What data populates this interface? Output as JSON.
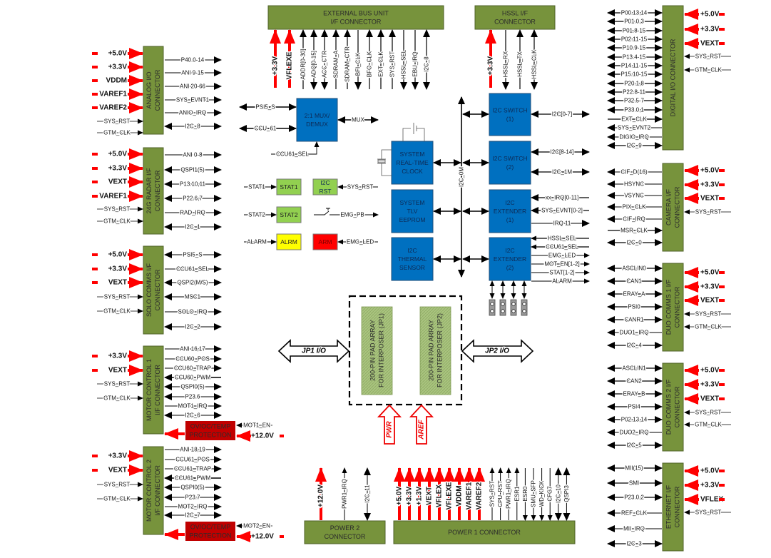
{
  "colors": {
    "connector": "#77933c",
    "block": "#0070c0",
    "power": "#ff0000",
    "protection": "#c00000",
    "status_led": "#92d050",
    "alarm_led": "#ffff00",
    "arm_led": "#ff0000"
  },
  "left_connectors": [
    {
      "id": "analog",
      "title": [
        "ANALOG I/O",
        "CONNECTOR"
      ],
      "power": [
        "+5.0V",
        "+3.3V",
        "VDDM",
        "VAREF1",
        "VAREF2"
      ],
      "inputs": [
        "SYS_RST",
        "GTM_CLK"
      ],
      "signals": [
        {
          "label": "P40.0-14",
          "dir": "out"
        },
        {
          "label": "ANI 9-15",
          "dir": "out"
        },
        {
          "label": "ANI 20-66",
          "dir": "out"
        },
        {
          "label": "SYS_EVNT1",
          "dir": "out"
        },
        {
          "label": "ANIO_IRQ",
          "dir": "out"
        },
        {
          "label": "I2C_8",
          "dir": "bi"
        }
      ]
    },
    {
      "id": "radar",
      "title": [
        "24G RADAR I/F",
        "CONNECTOR"
      ],
      "power": [
        "+5.0V",
        "+3.3V",
        "VEXT",
        "VAREF1"
      ],
      "inputs": [
        "SYS_RST",
        "GTM_CLK"
      ],
      "signals": [
        {
          "label": "ANI 0-8",
          "dir": "out"
        },
        {
          "label": "QSPI1(5)",
          "dir": "bi"
        },
        {
          "label": "P13.10,11",
          "dir": "bi"
        },
        {
          "label": "P22.6,7",
          "dir": "bi"
        },
        {
          "label": "RAD_IRQ",
          "dir": "out"
        },
        {
          "label": "I2C_1",
          "dir": "bi"
        }
      ]
    },
    {
      "id": "solo",
      "title": [
        "SOLO COMMS I/F",
        "CONNECTOR"
      ],
      "power": [
        "+5.0V",
        "+3.3V",
        "VEXT"
      ],
      "inputs": [
        "SYS_RST",
        "GTM_CLK"
      ],
      "signals": [
        {
          "label": "PSI5_S",
          "dir": "bi"
        },
        {
          "label": "CCU61_SEL",
          "dir": "out"
        },
        {
          "label": "QSPI2(M/S)",
          "dir": "bi"
        },
        {
          "label": "MSC1",
          "dir": "bi"
        },
        {
          "label": "SOLO_IRQ",
          "dir": "out"
        },
        {
          "label": "I2C_2",
          "dir": "bi"
        }
      ]
    },
    {
      "id": "motor1",
      "title": [
        "MOTOR CONTROL 1",
        "I/F CONNECTOR"
      ],
      "power": [
        "+3.3V",
        "VEXT"
      ],
      "inputs": [
        "SYS_RST",
        "GTM_CLK"
      ],
      "signals": [
        {
          "label": "ANI 16,17",
          "dir": "out"
        },
        {
          "label": "CCU60_POS",
          "dir": "out"
        },
        {
          "label": "CCU60_TRAP",
          "dir": "out"
        },
        {
          "label": "CCU60_PWM",
          "dir": "in"
        },
        {
          "label": "QSPI0(5)",
          "dir": "bi"
        },
        {
          "label": "P23.6",
          "dir": "bi"
        },
        {
          "label": "MOT1_IRQ",
          "dir": "out"
        },
        {
          "label": "I2C_6",
          "dir": "bi"
        }
      ],
      "protection": {
        "title": [
          "OV/OC/TEMP",
          "PROTECTION"
        ],
        "enable": "MOT1_EN",
        "supply": "+12.0V"
      }
    },
    {
      "id": "motor2",
      "title": [
        "MOTOR CONTROL 2",
        "I/F CONNECTOR"
      ],
      "power": [
        "+3.3V",
        "VEXT"
      ],
      "inputs": [
        "SYS_RST",
        "GTM_CLK"
      ],
      "signals": [
        {
          "label": "ANI 18,19",
          "dir": "out"
        },
        {
          "label": "CCU61_POS",
          "dir": "out"
        },
        {
          "label": "CCU61_TRAP",
          "dir": "out"
        },
        {
          "label": "CCU61_PWM",
          "dir": "in"
        },
        {
          "label": "QSPI0(5)",
          "dir": "bi"
        },
        {
          "label": "P23.7",
          "dir": "bi"
        },
        {
          "label": "MOT2_IRQ",
          "dir": "out"
        },
        {
          "label": "I2C_7",
          "dir": "bi"
        }
      ],
      "protection": {
        "title": [
          "OV/OC/TEMP",
          "PROTECTION"
        ],
        "enable": "MOT2_EN",
        "supply": "+12.0V"
      }
    }
  ],
  "right_connectors": [
    {
      "id": "digital",
      "title": [
        "DIGITAL I/O CONNECTOR"
      ],
      "power": [
        "+5.0V",
        "+3.3V",
        "VEXT"
      ],
      "inputs": [
        "SYS_RST",
        "GTM_CLK"
      ],
      "signals": [
        {
          "label": "P00.13,14",
          "dir": "bi"
        },
        {
          "label": "P01.0,3",
          "dir": "bi"
        },
        {
          "label": "P01.8-15",
          "dir": "bi"
        },
        {
          "label": "P02.11-15",
          "dir": "bi"
        },
        {
          "label": "P10.9-15",
          "dir": "bi"
        },
        {
          "label": "P13.4-15",
          "dir": "bi"
        },
        {
          "label": "P14.11-15",
          "dir": "bi"
        },
        {
          "label": "P15.10-15",
          "dir": "bi"
        },
        {
          "label": "P20.1,8",
          "dir": "bi"
        },
        {
          "label": "P22.8-11",
          "dir": "bi"
        },
        {
          "label": "P32.5-7",
          "dir": "bi"
        },
        {
          "label": "P33.0,1",
          "dir": "bi"
        },
        {
          "label": "EXT_CLK",
          "dir": "in"
        },
        {
          "label": "SYS_EVNT2",
          "dir": "out"
        },
        {
          "label": "DIGIO_IRQ",
          "dir": "out"
        },
        {
          "label": "I2C_9",
          "dir": "bi"
        }
      ]
    },
    {
      "id": "camera",
      "title": [
        "CAMERA I/F",
        "CONNECTOR"
      ],
      "power": [
        "+5.0V",
        "+3.3V",
        "VEXT"
      ],
      "inputs": [
        "SYS_RST"
      ],
      "signals": [
        {
          "label": "CIF_D(16)",
          "dir": "out"
        },
        {
          "label": "HSYNC",
          "dir": "out"
        },
        {
          "label": "VSYNC",
          "dir": "out"
        },
        {
          "label": "PIX_CLK",
          "dir": "out"
        },
        {
          "label": "CIF_IRQ",
          "dir": "out"
        },
        {
          "label": "MSR_CLK",
          "dir": "in"
        },
        {
          "label": "I2C_0",
          "dir": "bi"
        }
      ]
    },
    {
      "id": "duo1",
      "title": [
        "DUO COMMS 1 I/F",
        "CONNECTOR"
      ],
      "power": [
        "+5.0V",
        "+3.3V",
        "VEXT"
      ],
      "inputs": [
        "SYS_RST",
        "GTM_CLK"
      ],
      "signals": [
        {
          "label": "ASCLIN0",
          "dir": "bi"
        },
        {
          "label": "CAN1",
          "dir": "bi"
        },
        {
          "label": "ERAY_A",
          "dir": "bi"
        },
        {
          "label": "PSI0",
          "dir": "bi"
        },
        {
          "label": "CANR1",
          "dir": "bi"
        },
        {
          "label": "DUO1_IRQ",
          "dir": "out"
        },
        {
          "label": "I2C_4",
          "dir": "bi"
        }
      ]
    },
    {
      "id": "duo2",
      "title": [
        "DUO COMMS 2 I/F",
        "CONNECTOR"
      ],
      "power": [
        "+5.0V",
        "+3.3V",
        "VEXT"
      ],
      "inputs": [
        "SYS_RST",
        "GTM_CLK"
      ],
      "signals": [
        {
          "label": "ASCLIN1",
          "dir": "bi"
        },
        {
          "label": "CAN2",
          "dir": "bi"
        },
        {
          "label": "ERAY_B",
          "dir": "bi"
        },
        {
          "label": "PSI4",
          "dir": "bi"
        },
        {
          "label": "P02.13,14",
          "dir": "bi"
        },
        {
          "label": "DUO2_IRQ",
          "dir": "out"
        },
        {
          "label": "I2C_5",
          "dir": "bi"
        }
      ]
    },
    {
      "id": "ethernet",
      "title": [
        "ETHERNET I/F",
        "CONNECTOR"
      ],
      "power": [
        "+5.0V",
        "+3.3V",
        "VFLEX"
      ],
      "inputs": [
        "SYS_RST"
      ],
      "signals": [
        {
          "label": "MII(15)",
          "dir": "bi"
        },
        {
          "label": "SMI",
          "dir": "bi"
        },
        {
          "label": "P23.0,2",
          "dir": "bi"
        },
        {
          "label": "REF_CLK",
          "dir": "out"
        },
        {
          "label": "MII_IRQ",
          "dir": "out"
        },
        {
          "label": "I2C_3",
          "dir": "bi"
        }
      ]
    }
  ],
  "top_connectors": [
    {
      "id": "ebu",
      "title": [
        "EXTERNAL BUS UNIT",
        "I/F CONNECTOR"
      ],
      "pins": [
        {
          "label": "+3.3V",
          "dir": "power"
        },
        {
          "label": "VFLEXE",
          "dir": "power"
        },
        {
          "label": "ADDR[0-30]",
          "dir": "up"
        },
        {
          "label": "ADQ[0-15]",
          "dir": "bi"
        },
        {
          "label": "ACC_CTR",
          "dir": "bi"
        },
        {
          "label": "SDRAM_A",
          "dir": "up"
        },
        {
          "label": "SDRAM_CTR",
          "dir": "up"
        },
        {
          "label": "BFI_CLK",
          "dir": "down"
        },
        {
          "label": "BFO_CLK",
          "dir": "up"
        },
        {
          "label": "EXT_CLK",
          "dir": "up"
        },
        {
          "label": "SYS_RST",
          "dir": "up"
        },
        {
          "label": "HSSL_SEL",
          "dir": "down"
        },
        {
          "label": "EBU_IRQ",
          "dir": "down"
        },
        {
          "label": "I2C_8",
          "dir": "bi"
        }
      ]
    },
    {
      "id": "hssl",
      "title": [
        "HSSL I/F",
        "CONNECTOR"
      ],
      "pins": [
        {
          "label": "+3.3V",
          "dir": "power"
        },
        {
          "label": "HSSL_RX",
          "dir": "down"
        },
        {
          "label": "HSSL_TX",
          "dir": "up"
        },
        {
          "label": "HSSL_CLK",
          "dir": "bi"
        }
      ]
    }
  ],
  "bottom_connectors": [
    {
      "id": "power2",
      "title": [
        "POWER 2",
        "CONNECTOR"
      ],
      "pins": [
        {
          "label": "+12.0V",
          "dir": "power"
        },
        {
          "label": "PWR1_IRQ",
          "dir": "up"
        },
        {
          "label": "I2C_11",
          "dir": "bi"
        }
      ]
    },
    {
      "id": "power1",
      "title": [
        "POWER 1 CONNECTOR"
      ],
      "pins": [
        {
          "label": "+5.0V",
          "dir": "power"
        },
        {
          "label": "+3.3V",
          "dir": "power"
        },
        {
          "label": "+1.3V",
          "dir": "power"
        },
        {
          "label": "VEXT",
          "dir": "power"
        },
        {
          "label": "VFLEX",
          "dir": "power"
        },
        {
          "label": "VFLEXE",
          "dir": "power"
        },
        {
          "label": "VDDM",
          "dir": "power"
        },
        {
          "label": "VAREF1",
          "dir": "power"
        },
        {
          "label": "VAREF2",
          "dir": "power"
        },
        {
          "label": "SYS_RST",
          "dir": "up"
        },
        {
          "label": "CPU_RST",
          "dir": "up"
        },
        {
          "label": "PWR1_IRQ",
          "dir": "up"
        },
        {
          "label": "ESR1",
          "dir": "up"
        },
        {
          "label": "ESR0",
          "dir": "down"
        },
        {
          "label": "SMU_SFP",
          "dir": "down"
        },
        {
          "label": "WD_KICK",
          "dir": "down"
        },
        {
          "label": "CFG7",
          "dir": "down"
        },
        {
          "label": "I2C_10",
          "dir": "bi"
        },
        {
          "label": "QSPI3",
          "dir": "bi"
        }
      ]
    }
  ],
  "blocks": {
    "mux": {
      "title": [
        "2:1 MUX/",
        "DEMUX"
      ],
      "left": [
        "PSI5_S",
        "CCU_61"
      ],
      "right": "MUX",
      "select": "CCU61_SEL"
    },
    "rtc": {
      "title": [
        "SYSTEM",
        "REAL-TIME",
        "CLOCK"
      ]
    },
    "eeprom": {
      "title": [
        "SYSTEM",
        "TLV",
        "EEPROM"
      ]
    },
    "thermal": {
      "title": [
        "I2C",
        "THERMAL",
        "SENSOR"
      ]
    },
    "sw1": {
      "title": [
        "I2C SWITCH",
        "(1)"
      ],
      "signals": [
        {
          "label": "I2C[0-7]",
          "dir": "bi"
        }
      ]
    },
    "sw2": {
      "title": [
        "I2C SWITCH",
        "(2)"
      ],
      "signals": [
        {
          "label": "I2C[8-14]",
          "dir": "bi"
        },
        {
          "label": "I2C_1M",
          "dir": "bi"
        }
      ]
    },
    "ext1": {
      "title": [
        "I2C",
        "EXTENDER",
        "(1)"
      ],
      "signals": [
        {
          "label": "xx_IRQ[0-11]",
          "dir": "in"
        },
        {
          "label": "SYS_EVNT[0-2]",
          "dir": "in"
        },
        {
          "label": "IRQ 11",
          "dir": "out"
        }
      ]
    },
    "ext2": {
      "title": [
        "I2C",
        "EXTENDER",
        "(2)"
      ],
      "signals": [
        {
          "label": "HSSL_SEL",
          "dir": "in"
        },
        {
          "label": "CCU61_SEL",
          "dir": "in"
        },
        {
          "label": "EMG_LED",
          "dir": "out"
        },
        {
          "label": "MOT_EN[1-2]",
          "dir": "out"
        },
        {
          "label": "STAT[1-2]",
          "dir": "out"
        },
        {
          "label": "ALARM",
          "dir": "out"
        }
      ]
    },
    "bus_label": "I2C_0M"
  },
  "leds": [
    {
      "id": "stat1",
      "label": "STAT1",
      "signal": "STAT1",
      "color": "#92d050"
    },
    {
      "id": "i2crst",
      "label": [
        "I2C",
        "RST"
      ],
      "signal": "SYS_RST",
      "color": "#92d050"
    },
    {
      "id": "stat2",
      "label": "STAT2",
      "signal": "STAT2",
      "color": "#92d050"
    },
    {
      "id": "alrm",
      "label": "ALRM",
      "signal": "ALARM",
      "color": "#ffff00"
    },
    {
      "id": "arm",
      "label": "ARM",
      "signal": "EMG_LED",
      "color": "#ff0000"
    }
  ],
  "emg_pb": "EMG_PB",
  "interposer": {
    "jp1": {
      "title": [
        "200-PIN PAD ARRAY",
        "FOR INTERPOSER "
      ],
      "tag": "(JP1)",
      "io": "JP1 I/O"
    },
    "jp2": {
      "title": [
        "200-PIN PAD ARRAY",
        "FOR INTERPOSER "
      ],
      "tag": "(JP2)",
      "io": "JP2 I/O"
    },
    "inputs": [
      "PWR",
      "AREF"
    ]
  }
}
